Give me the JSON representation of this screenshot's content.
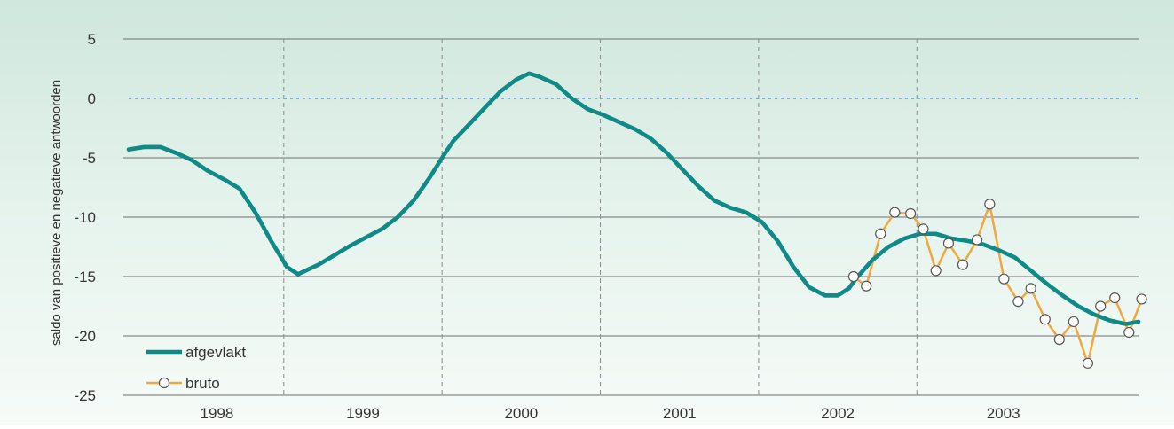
{
  "chart_data": {
    "type": "line",
    "title": "",
    "ylabel": "saldo van positieve en negatieve antwoorden",
    "xlabel": "",
    "ylim": [
      -25,
      5
    ],
    "y_ticks": [
      5,
      0,
      -5,
      -10,
      -15,
      -20,
      -25
    ],
    "y_tick_labels": [
      "5",
      "0",
      "-5",
      "-10",
      "-15",
      "-20",
      "-25"
    ],
    "x_range": [
      1997.6,
      2003.98
    ],
    "years": [
      {
        "label": "1998",
        "start": 1997.6,
        "end": 1998.58
      },
      {
        "label": "1999",
        "start": 1998.58,
        "end": 1999.58
      },
      {
        "label": "2000",
        "start": 1999.58,
        "end": 2000.58
      },
      {
        "label": "2001",
        "start": 2000.58,
        "end": 2001.58
      },
      {
        "label": "2002",
        "start": 2001.58,
        "end": 2002.58
      },
      {
        "label": "2003",
        "start": 2002.58,
        "end": 2003.98
      }
    ],
    "zero_line": 0,
    "grid": "horizontal solid, vertical dashed at year boundaries",
    "legend_position": "bottom-left",
    "series": [
      {
        "name": "afgevlakt",
        "color": "#0f8a86",
        "points": [
          [
            1997.6,
            -4.3
          ],
          [
            1997.7,
            -4.1
          ],
          [
            1997.8,
            -4.1
          ],
          [
            1997.9,
            -4.6
          ],
          [
            1998.0,
            -5.2
          ],
          [
            1998.1,
            -6.1
          ],
          [
            1998.2,
            -6.8
          ],
          [
            1998.3,
            -7.6
          ],
          [
            1998.4,
            -9.6
          ],
          [
            1998.5,
            -12.0
          ],
          [
            1998.6,
            -14.2
          ],
          [
            1998.67,
            -14.8
          ],
          [
            1998.8,
            -14.0
          ],
          [
            1998.9,
            -13.2
          ],
          [
            1999.0,
            -12.4
          ],
          [
            1999.1,
            -11.7
          ],
          [
            1999.2,
            -11.0
          ],
          [
            1999.3,
            -10.0
          ],
          [
            1999.4,
            -8.6
          ],
          [
            1999.5,
            -6.7
          ],
          [
            1999.6,
            -4.6
          ],
          [
            1999.65,
            -3.6
          ],
          [
            1999.75,
            -2.2
          ],
          [
            1999.85,
            -0.8
          ],
          [
            1999.95,
            0.6
          ],
          [
            2000.05,
            1.6
          ],
          [
            2000.13,
            2.1
          ],
          [
            2000.2,
            1.8
          ],
          [
            2000.3,
            1.2
          ],
          [
            2000.4,
            0.0
          ],
          [
            2000.5,
            -0.9
          ],
          [
            2000.6,
            -1.4
          ],
          [
            2000.7,
            -2.0
          ],
          [
            2000.8,
            -2.6
          ],
          [
            2000.9,
            -3.4
          ],
          [
            2001.0,
            -4.6
          ],
          [
            2001.1,
            -6.0
          ],
          [
            2001.2,
            -7.4
          ],
          [
            2001.3,
            -8.6
          ],
          [
            2001.4,
            -9.2
          ],
          [
            2001.5,
            -9.6
          ],
          [
            2001.6,
            -10.4
          ],
          [
            2001.7,
            -12.0
          ],
          [
            2001.8,
            -14.2
          ],
          [
            2001.9,
            -15.9
          ],
          [
            2002.0,
            -16.6
          ],
          [
            2002.08,
            -16.6
          ],
          [
            2002.15,
            -16.0
          ],
          [
            2002.2,
            -15.1
          ],
          [
            2002.3,
            -13.6
          ],
          [
            2002.4,
            -12.5
          ],
          [
            2002.5,
            -11.8
          ],
          [
            2002.6,
            -11.4
          ],
          [
            2002.7,
            -11.4
          ],
          [
            2002.8,
            -11.8
          ],
          [
            2002.9,
            -12.0
          ],
          [
            2003.0,
            -12.3
          ],
          [
            2003.1,
            -12.8
          ],
          [
            2003.2,
            -13.4
          ],
          [
            2003.3,
            -14.5
          ],
          [
            2003.4,
            -15.6
          ],
          [
            2003.5,
            -16.6
          ],
          [
            2003.6,
            -17.5
          ],
          [
            2003.7,
            -18.2
          ],
          [
            2003.8,
            -18.7
          ],
          [
            2003.9,
            -19.0
          ],
          [
            2003.98,
            -18.8
          ]
        ]
      },
      {
        "name": "bruto",
        "color": "#f0a83c",
        "markers": true,
        "points": [
          [
            2002.18,
            -15.0
          ],
          [
            2002.26,
            -15.8
          ],
          [
            2002.35,
            -11.4
          ],
          [
            2002.44,
            -9.6
          ],
          [
            2002.54,
            -9.7
          ],
          [
            2002.62,
            -11.0
          ],
          [
            2002.7,
            -14.5
          ],
          [
            2002.78,
            -12.2
          ],
          [
            2002.87,
            -14.0
          ],
          [
            2002.96,
            -11.9
          ],
          [
            2003.04,
            -8.9
          ],
          [
            2003.13,
            -15.2
          ],
          [
            2003.22,
            -17.1
          ],
          [
            2003.3,
            -16.0
          ],
          [
            2003.39,
            -18.6
          ],
          [
            2003.48,
            -20.3
          ],
          [
            2003.57,
            -18.8
          ],
          [
            2003.66,
            -22.3
          ],
          [
            2003.74,
            -17.5
          ],
          [
            2003.83,
            -16.8
          ],
          [
            2003.92,
            -19.7
          ],
          [
            2004.0,
            -16.9
          ]
        ]
      }
    ],
    "legend": [
      {
        "label": "afgevlakt",
        "series": "afgevlakt"
      },
      {
        "label": "bruto",
        "series": "bruto"
      }
    ]
  }
}
